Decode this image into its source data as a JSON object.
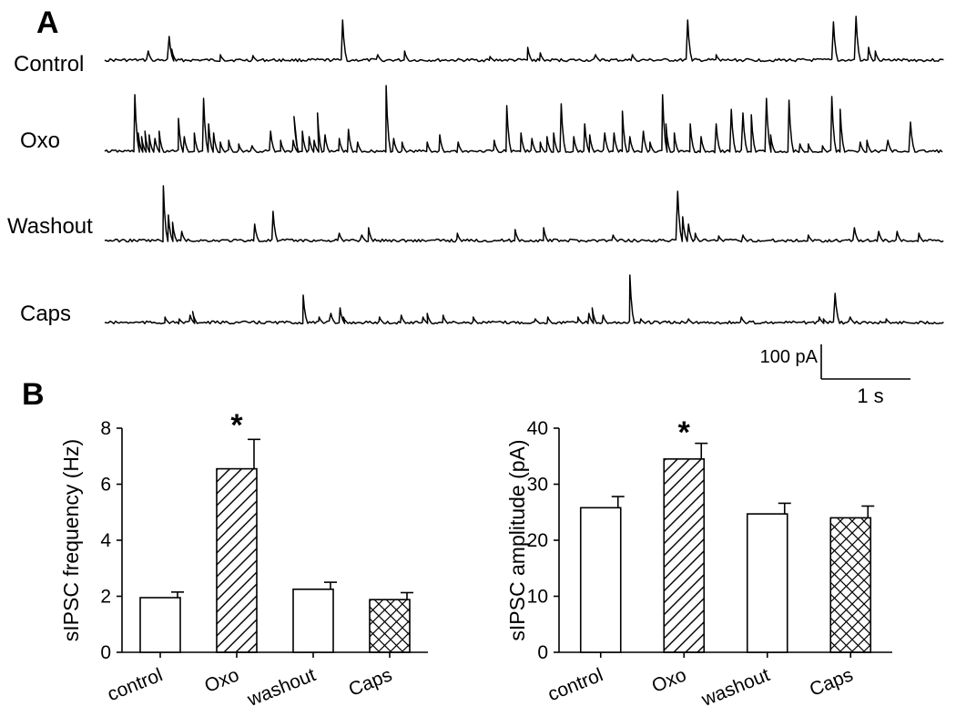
{
  "panel_a": {
    "letter": "A",
    "traces": [
      {
        "label": "Control",
        "spikes": [
          [
            0.052,
            10
          ],
          [
            0.077,
            26
          ],
          [
            0.08,
            12
          ],
          [
            0.138,
            6
          ],
          [
            0.177,
            5
          ],
          [
            0.284,
            44
          ],
          [
            0.326,
            6
          ],
          [
            0.358,
            10
          ],
          [
            0.46,
            4
          ],
          [
            0.505,
            14
          ],
          [
            0.52,
            8
          ],
          [
            0.586,
            6
          ],
          [
            0.63,
            6
          ],
          [
            0.696,
            44
          ],
          [
            0.73,
            6
          ],
          [
            0.87,
            42
          ],
          [
            0.897,
            48
          ],
          [
            0.912,
            14
          ],
          [
            0.92,
            10
          ]
        ]
      },
      {
        "label": "Oxo",
        "spikes": [
          [
            0.036,
            62
          ],
          [
            0.04,
            20
          ],
          [
            0.044,
            16
          ],
          [
            0.048,
            22
          ],
          [
            0.053,
            18
          ],
          [
            0.06,
            14
          ],
          [
            0.065,
            22
          ],
          [
            0.088,
            36
          ],
          [
            0.095,
            16
          ],
          [
            0.107,
            20
          ],
          [
            0.118,
            58
          ],
          [
            0.124,
            30
          ],
          [
            0.13,
            20
          ],
          [
            0.138,
            10
          ],
          [
            0.148,
            12
          ],
          [
            0.16,
            8
          ],
          [
            0.176,
            6
          ],
          [
            0.198,
            22
          ],
          [
            0.21,
            12
          ],
          [
            0.225,
            12
          ],
          [
            0.226,
            38
          ],
          [
            0.236,
            22
          ],
          [
            0.244,
            16
          ],
          [
            0.25,
            12
          ],
          [
            0.254,
            42
          ],
          [
            0.263,
            18
          ],
          [
            0.28,
            14
          ],
          [
            0.291,
            24
          ],
          [
            0.302,
            10
          ],
          [
            0.336,
            72
          ],
          [
            0.345,
            14
          ],
          [
            0.355,
            10
          ],
          [
            0.385,
            10
          ],
          [
            0.4,
            18
          ],
          [
            0.422,
            10
          ],
          [
            0.465,
            12
          ],
          [
            0.48,
            50
          ],
          [
            0.497,
            20
          ],
          [
            0.51,
            14
          ],
          [
            0.52,
            10
          ],
          [
            0.528,
            16
          ],
          [
            0.536,
            20
          ],
          [
            0.545,
            52
          ],
          [
            0.56,
            16
          ],
          [
            0.573,
            30
          ],
          [
            0.579,
            18
          ],
          [
            0.597,
            20
          ],
          [
            0.608,
            20
          ],
          [
            0.618,
            44
          ],
          [
            0.627,
            16
          ],
          [
            0.643,
            22
          ],
          [
            0.651,
            10
          ],
          [
            0.666,
            62
          ],
          [
            0.67,
            30
          ],
          [
            0.68,
            20
          ],
          [
            0.699,
            30
          ],
          [
            0.712,
            16
          ],
          [
            0.73,
            30
          ],
          [
            0.748,
            46
          ],
          [
            0.762,
            42
          ],
          [
            0.772,
            40
          ],
          [
            0.79,
            58
          ],
          [
            0.795,
            18
          ],
          [
            0.817,
            56
          ],
          [
            0.83,
            8
          ],
          [
            0.84,
            8
          ],
          [
            0.857,
            6
          ],
          [
            0.868,
            60
          ],
          [
            0.878,
            46
          ],
          [
            0.902,
            10
          ],
          [
            0.91,
            12
          ],
          [
            0.935,
            12
          ],
          [
            0.962,
            32
          ]
        ]
      },
      {
        "label": "Washout",
        "spikes": [
          [
            0.07,
            60
          ],
          [
            0.076,
            28
          ],
          [
            0.081,
            20
          ],
          [
            0.092,
            10
          ],
          [
            0.179,
            18
          ],
          [
            0.201,
            32
          ],
          [
            0.28,
            8
          ],
          [
            0.307,
            6
          ],
          [
            0.315,
            14
          ],
          [
            0.421,
            8
          ],
          [
            0.49,
            12
          ],
          [
            0.524,
            14
          ],
          [
            0.607,
            6
          ],
          [
            0.684,
            54
          ],
          [
            0.69,
            26
          ],
          [
            0.697,
            18
          ],
          [
            0.705,
            8
          ],
          [
            0.733,
            5
          ],
          [
            0.762,
            6
          ],
          [
            0.84,
            6
          ],
          [
            0.895,
            14
          ],
          [
            0.924,
            10
          ],
          [
            0.946,
            10
          ],
          [
            0.972,
            8
          ]
        ]
      },
      {
        "label": "Caps",
        "spikes": [
          [
            0.072,
            6
          ],
          [
            0.089,
            4
          ],
          [
            0.102,
            8
          ],
          [
            0.105,
            12
          ],
          [
            0.237,
            30
          ],
          [
            0.256,
            6
          ],
          [
            0.27,
            10
          ],
          [
            0.281,
            16
          ],
          [
            0.285,
            6
          ],
          [
            0.328,
            6
          ],
          [
            0.354,
            8
          ],
          [
            0.38,
            6
          ],
          [
            0.385,
            10
          ],
          [
            0.404,
            8
          ],
          [
            0.44,
            6
          ],
          [
            0.514,
            4
          ],
          [
            0.529,
            6
          ],
          [
            0.565,
            6
          ],
          [
            0.578,
            10
          ],
          [
            0.582,
            16
          ],
          [
            0.595,
            8
          ],
          [
            0.627,
            52
          ],
          [
            0.64,
            4
          ],
          [
            0.697,
            4
          ],
          [
            0.76,
            6
          ],
          [
            0.853,
            6
          ],
          [
            0.858,
            4
          ],
          [
            0.872,
            32
          ],
          [
            0.89,
            6
          ],
          [
            0.933,
            4
          ]
        ]
      }
    ],
    "scale_bar": {
      "amplitude_label": "100 pA",
      "time_label": "1 s"
    }
  },
  "panel_b": {
    "letter": "B"
  },
  "chart_data": [
    {
      "type": "bar",
      "ylabel": "sIPSC frequency (Hz)",
      "categories": [
        "control",
        "Oxo",
        "washout",
        "Caps"
      ],
      "values": [
        1.95,
        6.55,
        2.25,
        1.88
      ],
      "errors": [
        0.2,
        1.05,
        0.25,
        0.25
      ],
      "patterns": [
        "none",
        "diagonal",
        "none",
        "crosshatch"
      ],
      "ylim": [
        0,
        8
      ],
      "yticks": [
        "0",
        "2",
        "4",
        "6",
        "8"
      ],
      "significance": [
        "",
        "*",
        "",
        ""
      ]
    },
    {
      "type": "bar",
      "ylabel": "sIPSC amplitude (pA)",
      "categories": [
        "control",
        "Oxo",
        "washout",
        "Caps"
      ],
      "values": [
        25.8,
        34.5,
        24.7,
        24.0
      ],
      "errors": [
        2.0,
        2.8,
        1.9,
        2.1
      ],
      "patterns": [
        "none",
        "diagonal",
        "none",
        "crosshatch"
      ],
      "ylim": [
        0,
        40
      ],
      "yticks": [
        "0",
        "10",
        "20",
        "30",
        "40"
      ],
      "significance": [
        "",
        "*",
        "",
        ""
      ]
    }
  ],
  "colors": {
    "ink": "#000000",
    "background": "#ffffff"
  }
}
